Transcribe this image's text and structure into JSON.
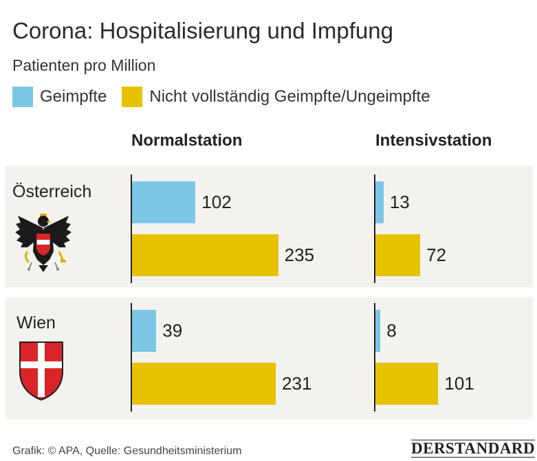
{
  "chart_data": {
    "type": "bar",
    "orientation": "horizontal",
    "title": "Corona: Hospitalisierung und Impfung",
    "subtitle": "Patienten pro Million",
    "panels": [
      "Normalstation",
      "Intensivstation"
    ],
    "groups": [
      "Österreich",
      "Wien"
    ],
    "series": [
      {
        "name": "Geimpfte",
        "color": "#7cc6e6",
        "normalstation": [
          102,
          39
        ],
        "intensivstation": [
          13,
          8
        ]
      },
      {
        "name": "Nicht vollständig Geimpfte/Ungeimpfte",
        "color": "#e6c200",
        "normalstation": [
          235,
          231
        ],
        "intensivstation": [
          72,
          101
        ]
      }
    ],
    "legend_position": "top-left",
    "grid": false
  },
  "footer": {
    "source": "Grafik: © APA, Quelle: Gesundheitsministerium",
    "brand": "DERSTANDARD"
  },
  "icons": {
    "austria": "austria-eagle-icon",
    "vienna": "vienna-coat-of-arms-icon"
  },
  "colors": {
    "panel_bg": "#f3f2ef",
    "axis": "#222222"
  }
}
